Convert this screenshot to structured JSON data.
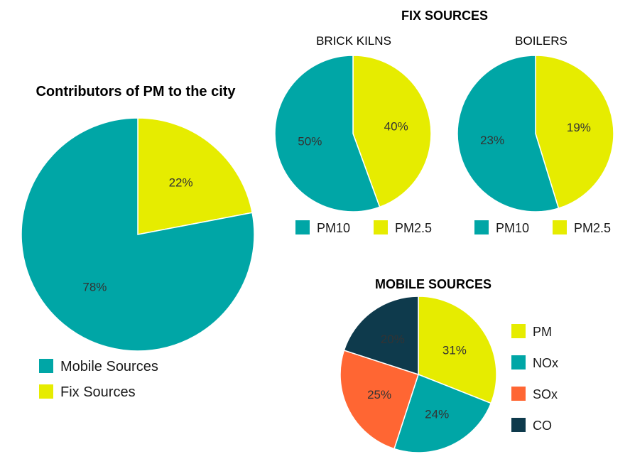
{
  "colors": {
    "teal": "#00A6A6",
    "yellow": "#E6EC00",
    "orange": "#FF6633",
    "navy": "#0E3A4C",
    "slice_border": "#ffffff"
  },
  "chart_data": [
    {
      "type": "pie",
      "title": "Contributors of PM to the city",
      "labels": [
        "Fix Sources",
        "Mobile Sources"
      ],
      "values": [
        22,
        78
      ],
      "value_labels": [
        "22%",
        "78%"
      ],
      "colors": [
        "#E6EC00",
        "#00A6A6"
      ],
      "legend": [
        "Mobile Sources",
        "Fix Sources"
      ],
      "legend_colors": [
        "#00A6A6",
        "#E6EC00"
      ],
      "legend_placement": "bottom"
    },
    {
      "type": "pie",
      "section_title": "FIX SOURCES",
      "title": "BRICK KILNS",
      "labels": [
        "PM2.5",
        "PM10"
      ],
      "values": [
        40,
        50
      ],
      "value_labels": [
        "40%",
        "50%"
      ],
      "colors": [
        "#E6EC00",
        "#00A6A6"
      ],
      "legend": [
        "PM10",
        "PM2.5"
      ],
      "legend_colors": [
        "#00A6A6",
        "#E6EC00"
      ],
      "legend_placement": "bottom"
    },
    {
      "type": "pie",
      "title": "BOILERS",
      "labels": [
        "PM2.5",
        "PM10"
      ],
      "values": [
        19,
        23
      ],
      "value_labels": [
        "19%",
        "23%"
      ],
      "colors": [
        "#E6EC00",
        "#00A6A6"
      ],
      "legend": [
        "PM10",
        "PM2.5"
      ],
      "legend_colors": [
        "#00A6A6",
        "#E6EC00"
      ],
      "legend_placement": "bottom"
    },
    {
      "type": "pie",
      "title": "MOBILE SOURCES",
      "labels": [
        "PM",
        "NOx",
        "SOx",
        "CO"
      ],
      "values": [
        31,
        24,
        25,
        20
      ],
      "value_labels": [
        "31%",
        "24%",
        "25%",
        "20%"
      ],
      "colors": [
        "#E6EC00",
        "#00A6A6",
        "#FF6633",
        "#0E3A4C"
      ],
      "legend": [
        "PM",
        "NOx",
        "SOx",
        "CO"
      ],
      "legend_colors": [
        "#E6EC00",
        "#00A6A6",
        "#FF6633",
        "#0E3A4C"
      ],
      "legend_placement": "right"
    }
  ]
}
